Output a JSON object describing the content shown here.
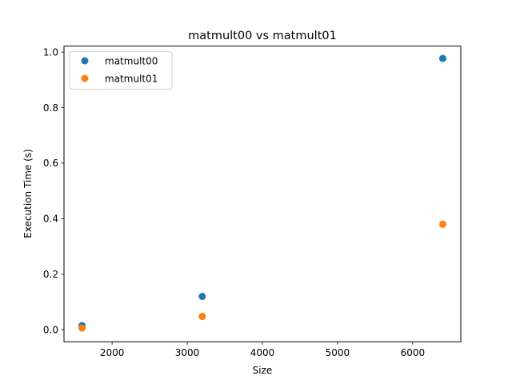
{
  "chart_data": {
    "type": "scatter",
    "title": "matmult00 vs matmult01",
    "xlabel": "Size",
    "ylabel": "Execution Time (s)",
    "xlim": [
      1360,
      6640
    ],
    "ylim": [
      -0.0432,
      1.0216
    ],
    "xticks": [
      2000,
      3000,
      4000,
      5000,
      6000
    ],
    "yticks": [
      0.0,
      0.2,
      0.4,
      0.6,
      0.8,
      1.0
    ],
    "xtick_labels": [
      "2000",
      "3000",
      "4000",
      "5000",
      "6000"
    ],
    "ytick_labels": [
      "0.0",
      "0.2",
      "0.4",
      "0.6",
      "0.8",
      "1.0"
    ],
    "legend_position": "top-left",
    "series": [
      {
        "name": "matmult00",
        "color": "#1f77b4",
        "x": [
          1600,
          3200,
          6400
        ],
        "y": [
          0.015,
          0.12,
          0.977
        ]
      },
      {
        "name": "matmult01",
        "color": "#ff7f0e",
        "x": [
          1600,
          3200,
          6400
        ],
        "y": [
          0.006,
          0.048,
          0.38
        ]
      }
    ]
  }
}
